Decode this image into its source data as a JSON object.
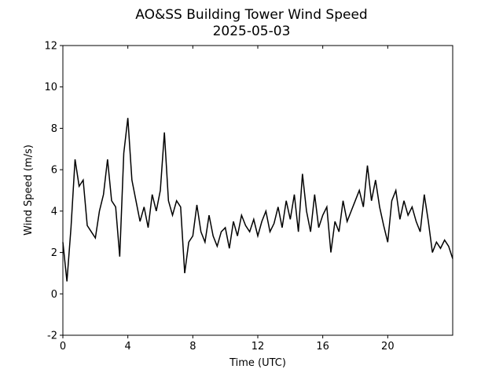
{
  "chart_data": {
    "type": "line",
    "title": "AO&SS Building Tower Wind Speed",
    "subtitle": "2025-05-03",
    "xlabel": "Time (UTC)",
    "ylabel": "Wind Speed (m/s)",
    "xlim": [
      0,
      24
    ],
    "xticks": [
      0,
      4,
      8,
      12,
      16,
      20
    ],
    "ylim": [
      -2,
      12
    ],
    "yticks": [
      -2,
      0,
      2,
      4,
      6,
      8,
      10,
      12
    ],
    "grid": false,
    "series": [
      {
        "name": "Wind Speed",
        "color": "#000000",
        "x": [
          0,
          0.25,
          0.5,
          0.75,
          1,
          1.25,
          1.5,
          1.75,
          2,
          2.25,
          2.5,
          2.75,
          3,
          3.25,
          3.5,
          3.75,
          4,
          4.25,
          4.5,
          4.75,
          5,
          5.25,
          5.5,
          5.75,
          6,
          6.25,
          6.5,
          6.75,
          7,
          7.25,
          7.5,
          7.75,
          8,
          8.25,
          8.5,
          8.75,
          9,
          9.25,
          9.5,
          9.75,
          10,
          10.25,
          10.5,
          10.75,
          11,
          11.25,
          11.5,
          11.75,
          12,
          12.25,
          12.5,
          12.75,
          13,
          13.25,
          13.5,
          13.75,
          14,
          14.25,
          14.5,
          14.75,
          15,
          15.25,
          15.5,
          15.75,
          16,
          16.25,
          16.5,
          16.75,
          17,
          17.25,
          17.5,
          17.75,
          18,
          18.25,
          18.5,
          18.75,
          19,
          19.25,
          19.5,
          19.75,
          20,
          20.25,
          20.5,
          20.75,
          21,
          21.25,
          21.5,
          21.75,
          22,
          22.25,
          22.5,
          22.75,
          23,
          23.25,
          23.5,
          23.75,
          24
        ],
        "values": [
          2.5,
          0.6,
          3.2,
          6.5,
          5.2,
          5.5,
          3.3,
          3.0,
          2.7,
          4.0,
          4.8,
          6.5,
          4.5,
          4.2,
          1.8,
          6.8,
          8.5,
          5.5,
          4.5,
          3.5,
          4.2,
          3.2,
          4.8,
          4.0,
          5.0,
          7.8,
          4.5,
          3.8,
          4.5,
          4.2,
          1.0,
          2.5,
          2.8,
          4.3,
          3.0,
          2.5,
          3.8,
          2.8,
          2.3,
          3.0,
          3.2,
          2.2,
          3.5,
          2.8,
          3.8,
          3.3,
          3.0,
          3.6,
          2.8,
          3.5,
          4.0,
          3.0,
          3.4,
          4.2,
          3.2,
          4.5,
          3.6,
          4.8,
          3.0,
          5.8,
          4.0,
          3.0,
          4.8,
          3.2,
          3.8,
          4.2,
          2.0,
          3.5,
          3.0,
          4.5,
          3.5,
          4.0,
          4.5,
          5.0,
          4.2,
          6.2,
          4.5,
          5.5,
          4.2,
          3.3,
          2.5,
          4.5,
          5.0,
          3.6,
          4.5,
          3.8,
          4.2,
          3.5,
          3.0,
          4.8,
          3.5,
          2.0,
          2.5,
          2.2,
          2.6,
          2.3,
          1.7
        ]
      }
    ]
  }
}
